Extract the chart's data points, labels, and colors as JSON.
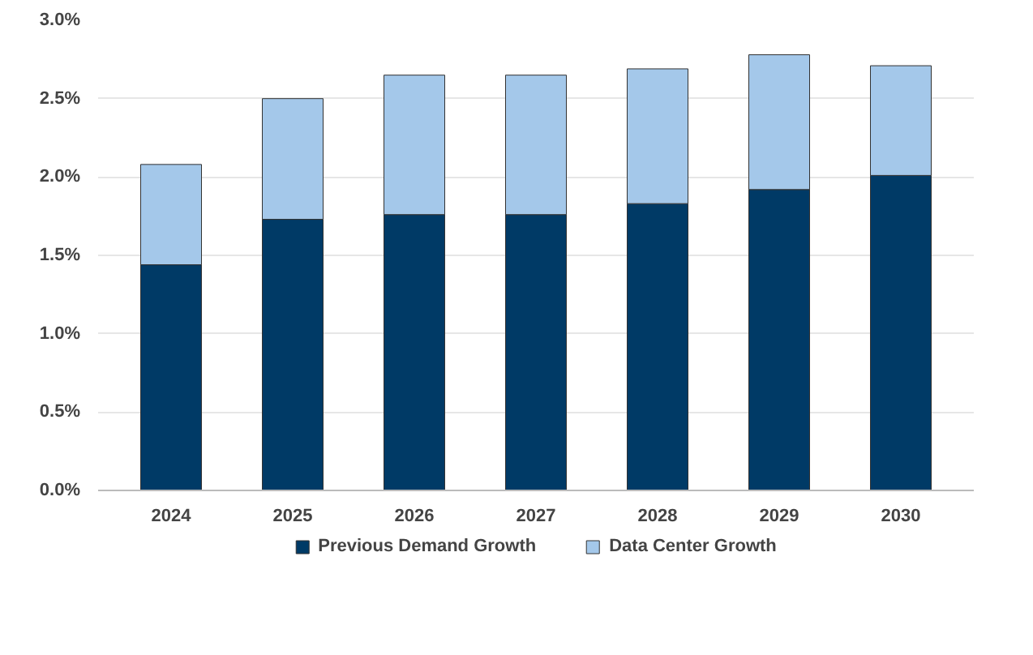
{
  "chart_data": {
    "type": "bar",
    "stacked": true,
    "categories": [
      "2024",
      "2025",
      "2026",
      "2027",
      "2028",
      "2029",
      "2030"
    ],
    "series": [
      {
        "name": "Previous Demand Growth",
        "color": "#003a66",
        "values": [
          1.44,
          1.73,
          1.76,
          1.76,
          1.83,
          1.92,
          2.01
        ]
      },
      {
        "name": "Data Center Growth",
        "color": "#a4c8ea",
        "values": [
          0.64,
          0.77,
          0.89,
          0.89,
          0.86,
          0.86,
          0.7
        ]
      }
    ],
    "ylim": [
      0,
      3.0
    ],
    "yticks": [
      {
        "value": 0,
        "label": "0.0%"
      },
      {
        "value": 0.5,
        "label": "0.5%"
      },
      {
        "value": 1.0,
        "label": "1.0%"
      },
      {
        "value": 1.5,
        "label": "1.5%"
      },
      {
        "value": 2.0,
        "label": "2.0%"
      },
      {
        "value": 2.5,
        "label": "2.5%"
      },
      {
        "value": 3.0,
        "label": "3.0%"
      }
    ],
    "grid": "y",
    "legend": "bottom"
  }
}
